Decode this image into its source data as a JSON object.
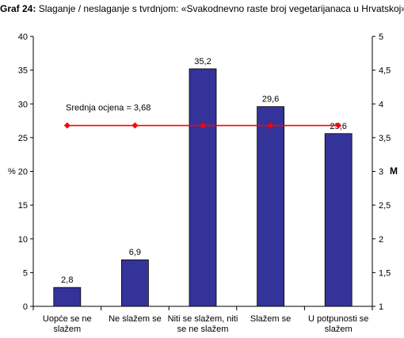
{
  "title_prefix": "Graf 24:",
  "title_text": "Slaganje / neslaganje s tvrdnjom: «Svakodnevno raste broj vegetarijanaca u Hrvatskoj»",
  "chart_data": {
    "type": "bar",
    "categories": [
      [
        "Uopće se ne",
        "slažem"
      ],
      [
        "Ne slažem se"
      ],
      [
        "Niti se slažem, niti",
        "se ne slažem"
      ],
      [
        "Slažem se"
      ],
      [
        "U potpunosti se",
        "slažem"
      ]
    ],
    "values": [
      2.8,
      6.9,
      35.2,
      29.6,
      25.6
    ],
    "value_labels": [
      "2,8",
      "6,9",
      "35,2",
      "29,6",
      "25,6"
    ],
    "ylabel": "%",
    "ylim": [
      0,
      40
    ],
    "yticks": [
      "0",
      "5",
      "10",
      "15",
      "20",
      "25",
      "30",
      "35",
      "40"
    ],
    "y2label": "M",
    "y2lim": [
      1,
      5
    ],
    "y2ticks": [
      "1",
      "1,5",
      "2",
      "2,5",
      "3",
      "3,5",
      "4",
      "4,5",
      "5"
    ],
    "mean": 3.68,
    "mean_label": "Srednja ocjena = 3,68",
    "colors": {
      "bar": "#333399",
      "mean_line": "#ff0000"
    }
  }
}
